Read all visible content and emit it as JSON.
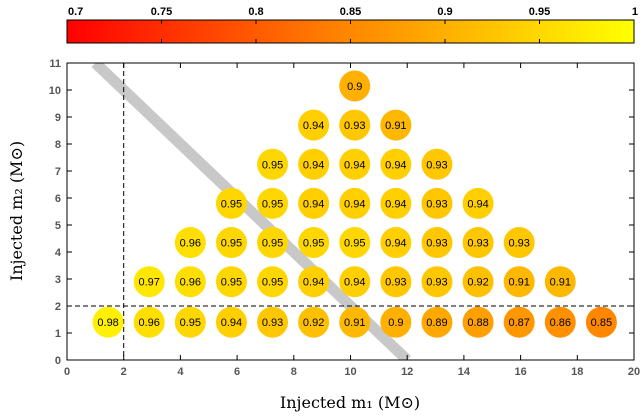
{
  "chart_data": {
    "type": "scatter",
    "title": "",
    "xlabel": "Injected m₁ (M⊙)",
    "ylabel": "Injected m₂ (M⊙)",
    "xlim": [
      0,
      20
    ],
    "ylim": [
      0,
      11
    ],
    "xticks": [
      "0",
      "2",
      "4",
      "6",
      "8",
      "10",
      "12",
      "14",
      "16",
      "18",
      "20"
    ],
    "yticks": [
      "0",
      "1",
      "2",
      "3",
      "4",
      "5",
      "6",
      "7",
      "8",
      "9",
      "10",
      "11"
    ],
    "grid": false,
    "colorbar": {
      "position": "top",
      "range": [
        0.7,
        1
      ],
      "ticks": [
        "0.7",
        "0.75",
        "0.8",
        "0.85",
        "0.9",
        "0.95",
        "1"
      ],
      "colors": [
        "#ff0000",
        "#ff8800",
        "#ffff00"
      ]
    },
    "reference_lines": [
      {
        "type": "vertical-dashed",
        "x": 2
      },
      {
        "type": "horizontal-dashed",
        "y": 2
      },
      {
        "type": "diagonal-band",
        "from": [
          1,
          11
        ],
        "to": [
          12,
          0
        ],
        "color": "#c8c8c8"
      }
    ],
    "points": [
      {
        "x": 1.45,
        "y": 1.4,
        "value": "0.98"
      },
      {
        "x": 2.9,
        "y": 1.4,
        "value": "0.96"
      },
      {
        "x": 4.35,
        "y": 1.4,
        "value": "0.95"
      },
      {
        "x": 5.8,
        "y": 1.4,
        "value": "0.94"
      },
      {
        "x": 7.25,
        "y": 1.4,
        "value": "0.93"
      },
      {
        "x": 8.7,
        "y": 1.4,
        "value": "0.92"
      },
      {
        "x": 10.15,
        "y": 1.4,
        "value": "0.91"
      },
      {
        "x": 11.6,
        "y": 1.4,
        "value": "0.9"
      },
      {
        "x": 13.05,
        "y": 1.4,
        "value": "0.89"
      },
      {
        "x": 14.5,
        "y": 1.4,
        "value": "0.88"
      },
      {
        "x": 15.95,
        "y": 1.4,
        "value": "0.87"
      },
      {
        "x": 17.4,
        "y": 1.4,
        "value": "0.86"
      },
      {
        "x": 18.85,
        "y": 1.4,
        "value": "0.85"
      },
      {
        "x": 2.9,
        "y": 2.9,
        "value": "0.97"
      },
      {
        "x": 4.35,
        "y": 2.9,
        "value": "0.96"
      },
      {
        "x": 5.8,
        "y": 2.9,
        "value": "0.95"
      },
      {
        "x": 7.25,
        "y": 2.9,
        "value": "0.95"
      },
      {
        "x": 8.7,
        "y": 2.9,
        "value": "0.94"
      },
      {
        "x": 10.15,
        "y": 2.9,
        "value": "0.94"
      },
      {
        "x": 11.6,
        "y": 2.9,
        "value": "0.93"
      },
      {
        "x": 13.05,
        "y": 2.9,
        "value": "0.93"
      },
      {
        "x": 14.5,
        "y": 2.9,
        "value": "0.92"
      },
      {
        "x": 15.95,
        "y": 2.9,
        "value": "0.91"
      },
      {
        "x": 17.4,
        "y": 2.9,
        "value": "0.91"
      },
      {
        "x": 4.35,
        "y": 4.35,
        "value": "0.96"
      },
      {
        "x": 5.8,
        "y": 4.35,
        "value": "0.95"
      },
      {
        "x": 7.25,
        "y": 4.35,
        "value": "0.95"
      },
      {
        "x": 8.7,
        "y": 4.35,
        "value": "0.95"
      },
      {
        "x": 10.15,
        "y": 4.35,
        "value": "0.95"
      },
      {
        "x": 11.6,
        "y": 4.35,
        "value": "0.94"
      },
      {
        "x": 13.05,
        "y": 4.35,
        "value": "0.93"
      },
      {
        "x": 14.5,
        "y": 4.35,
        "value": "0.93"
      },
      {
        "x": 15.95,
        "y": 4.35,
        "value": "0.93"
      },
      {
        "x": 5.8,
        "y": 5.8,
        "value": "0.95"
      },
      {
        "x": 7.25,
        "y": 5.8,
        "value": "0.95"
      },
      {
        "x": 8.7,
        "y": 5.8,
        "value": "0.94"
      },
      {
        "x": 10.15,
        "y": 5.8,
        "value": "0.94"
      },
      {
        "x": 11.6,
        "y": 5.8,
        "value": "0.94"
      },
      {
        "x": 13.05,
        "y": 5.8,
        "value": "0.93"
      },
      {
        "x": 14.5,
        "y": 5.8,
        "value": "0.94"
      },
      {
        "x": 7.25,
        "y": 7.25,
        "value": "0.95"
      },
      {
        "x": 8.7,
        "y": 7.25,
        "value": "0.94"
      },
      {
        "x": 10.15,
        "y": 7.25,
        "value": "0.94"
      },
      {
        "x": 11.6,
        "y": 7.25,
        "value": "0.94"
      },
      {
        "x": 13.05,
        "y": 7.25,
        "value": "0.93"
      },
      {
        "x": 8.7,
        "y": 8.7,
        "value": "0.94"
      },
      {
        "x": 10.15,
        "y": 8.7,
        "value": "0.93"
      },
      {
        "x": 11.6,
        "y": 8.7,
        "value": "0.91"
      },
      {
        "x": 10.15,
        "y": 10.15,
        "value": "0.9"
      }
    ]
  }
}
